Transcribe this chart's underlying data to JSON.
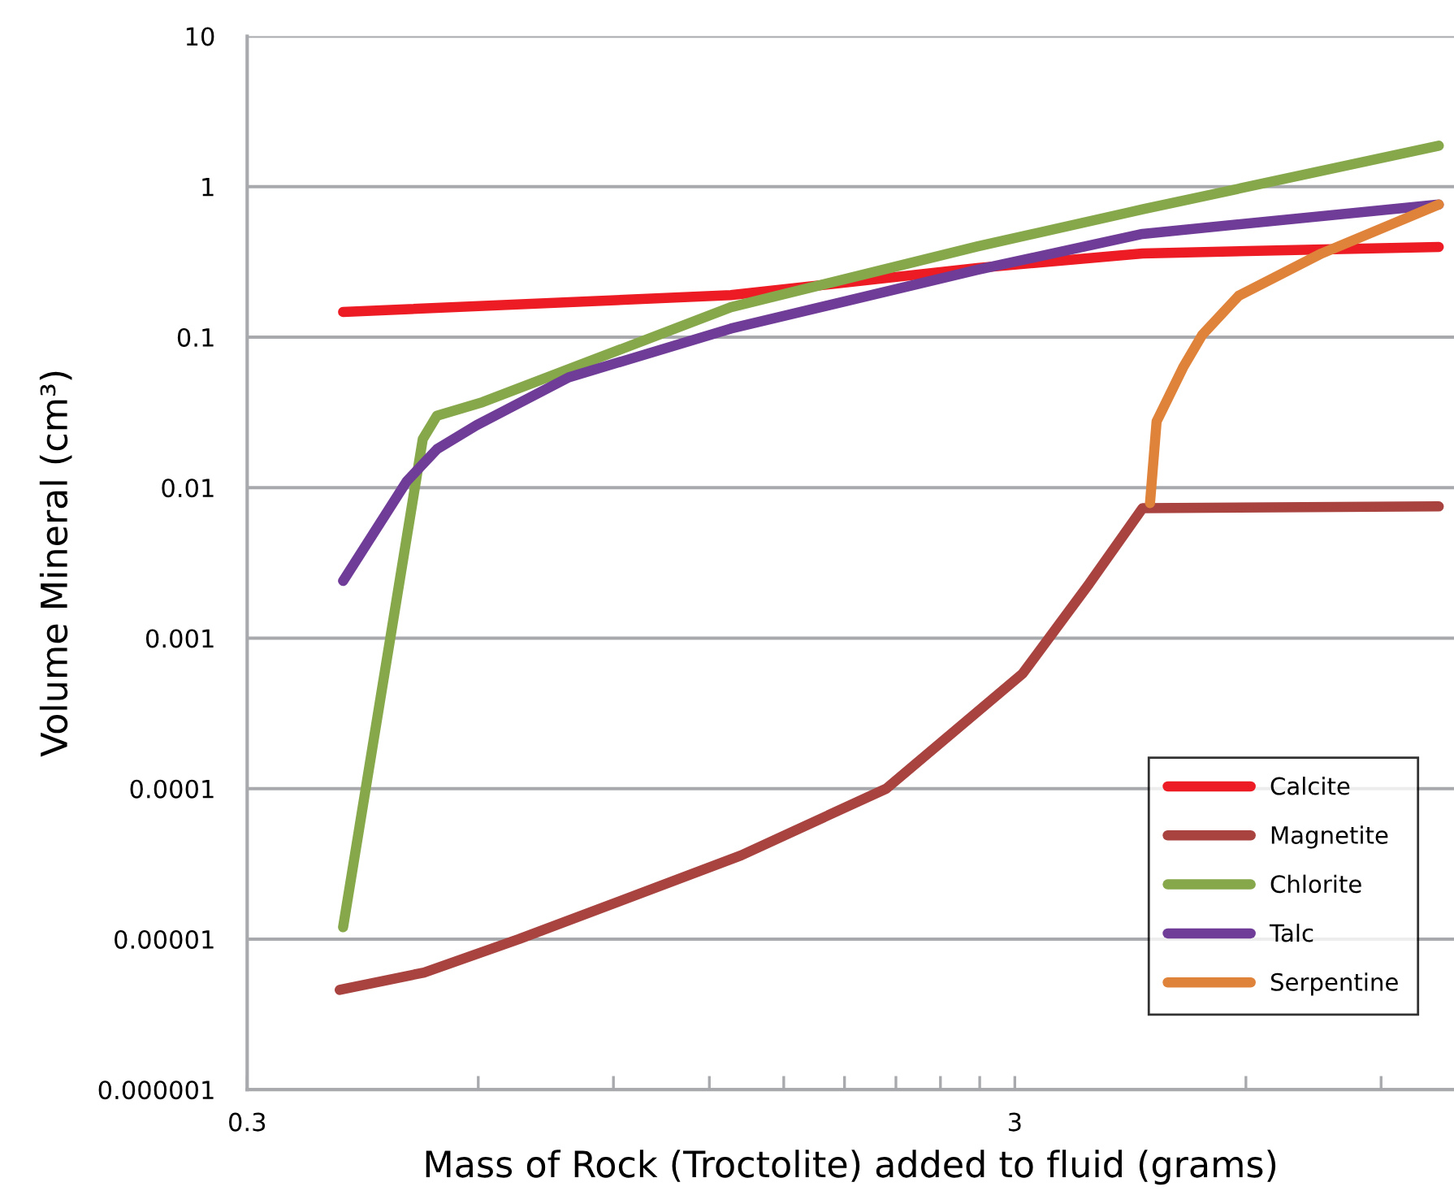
{
  "chart_data": {
    "type": "line",
    "xlabel": "Mass of Rock (Troctolite) added to fluid (grams)",
    "ylabel": "Volume Mineral (cm³)",
    "log": "xy",
    "xlim": [
      0.3,
      11.2
    ],
    "xticks": [
      0.3,
      {
        "value": 0.6,
        "label": null
      },
      {
        "value": 0.9,
        "label": null
      },
      {
        "value": 1.2,
        "label": null
      },
      {
        "value": 1.5,
        "label": null
      },
      {
        "value": 1.8,
        "label": null
      },
      {
        "value": 2.1,
        "label": null
      },
      {
        "value": 2.4,
        "label": null
      },
      {
        "value": 2.7,
        "label": null
      },
      3,
      {
        "value": 6,
        "label": null
      },
      {
        "value": 9,
        "label": null
      }
    ],
    "ylim": [
      1e-06,
      10
    ],
    "yticks": [
      {
        "value": 1e-06,
        "label": "0.000001"
      },
      {
        "value": 1e-05,
        "label": "0.00001"
      },
      {
        "value": 0.0001,
        "label": "0.0001"
      },
      {
        "value": 0.001,
        "label": "0.001"
      },
      {
        "value": 0.01,
        "label": "0.01"
      },
      {
        "value": 0.1,
        "label": "0.1"
      },
      1,
      10
    ],
    "grid": "y",
    "legend": "bottom right",
    "line_style": "solid",
    "series": [
      {
        "name": "Calcite",
        "color": "#ed1c24",
        "x": [
          0.4,
          1.28,
          2.68,
          4.4,
          10.7
        ],
        "values": [
          0.147,
          0.19,
          0.288,
          0.36,
          0.397
        ]
      },
      {
        "name": "Magnetite",
        "color": "#a84340",
        "x": [
          0.396,
          0.51,
          0.678,
          1.32,
          2.04,
          3.07,
          3.75,
          4.4,
          10.7
        ],
        "values": [
          4.6e-06,
          6e-06,
          1e-05,
          3.6e-05,
          0.0001,
          0.00058,
          0.0023,
          0.0073,
          0.0075
        ]
      },
      {
        "name": "Chlorite",
        "color": "#86a84a",
        "x": [
          0.4,
          0.508,
          0.53,
          0.608,
          1.28,
          2.68,
          4.4,
          10.7
        ],
        "values": [
          1.2e-05,
          0.021,
          0.03,
          0.037,
          0.158,
          0.4,
          0.706,
          1.87
        ]
      },
      {
        "name": "Talc",
        "color": "#6f3c97",
        "x": [
          0.4,
          0.484,
          0.53,
          0.597,
          0.787,
          1.28,
          2.68,
          4.4,
          10.7
        ],
        "values": [
          0.0024,
          0.011,
          0.018,
          0.026,
          0.054,
          0.114,
          0.28,
          0.485,
          0.76
        ]
      },
      {
        "name": "Serpentine",
        "color": "#e0833a",
        "x": [
          4.5,
          4.59,
          4.97,
          5.26,
          5.87,
          7.53,
          10.7
        ],
        "values": [
          0.0079,
          0.0275,
          0.063,
          0.103,
          0.188,
          0.36,
          0.76
        ]
      }
    ]
  }
}
